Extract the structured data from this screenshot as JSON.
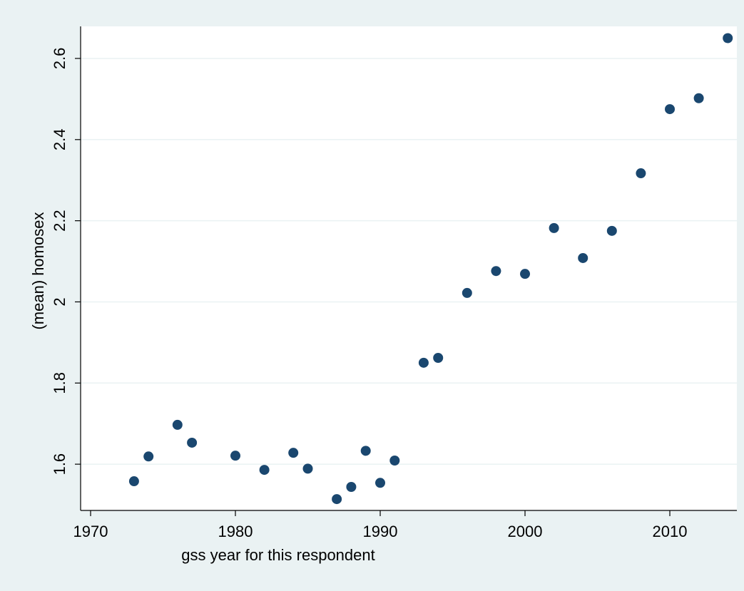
{
  "chart_data": {
    "type": "scatter",
    "x_label": "gss year for this respondent",
    "y_label": "(mean) homosex",
    "x": [
      1973,
      1974,
      1976,
      1977,
      1980,
      1982,
      1984,
      1985,
      1987,
      1988,
      1989,
      1990,
      1991,
      1993,
      1994,
      1996,
      1998,
      2000,
      2002,
      2004,
      2006,
      2008,
      2010,
      2012,
      2014
    ],
    "values": [
      1.558,
      1.619,
      1.697,
      1.653,
      1.621,
      1.586,
      1.628,
      1.589,
      1.514,
      1.544,
      1.633,
      1.554,
      1.609,
      1.85,
      1.862,
      2.022,
      2.076,
      2.069,
      2.182,
      2.108,
      2.175,
      2.317,
      2.475,
      2.502,
      2.65
    ],
    "color": "#1a476f",
    "xlim": [
      1969.31,
      2014.63
    ],
    "xticks": [
      1970,
      1980,
      1990,
      2000,
      2010
    ],
    "ylim": [
      1.486,
      2.679
    ],
    "yticks": [
      1.6,
      1.8,
      2,
      2.2,
      2.4,
      2.6
    ],
    "grid": true
  }
}
